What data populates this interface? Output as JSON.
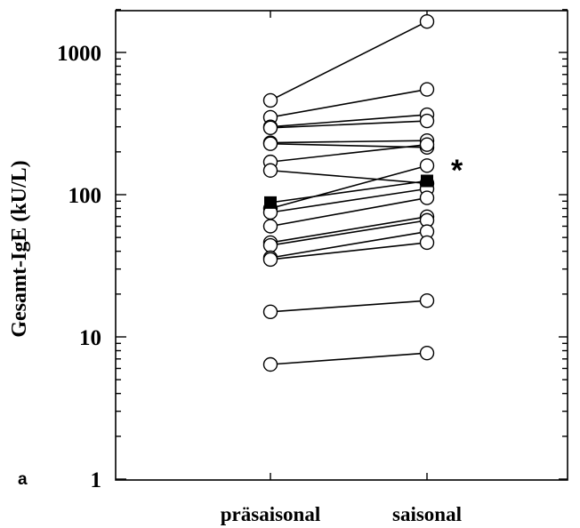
{
  "chart_data": {
    "type": "scatter",
    "subtype": "paired-dot-plot",
    "title": "",
    "xlabel": "",
    "ylabel": "Gesamt-IgE (kU/L)",
    "yscale": "log",
    "ylim": [
      1,
      2000
    ],
    "yticks": [
      {
        "value": 1,
        "label": "1"
      },
      {
        "value": 10,
        "label": "10"
      },
      {
        "value": 100,
        "label": "100"
      },
      {
        "value": 1000,
        "label": "1000"
      }
    ],
    "categories": [
      "präsaisonal",
      "saisonal"
    ],
    "pairs": [
      {
        "before": 460,
        "after": 1650
      },
      {
        "before": 350,
        "after": 550
      },
      {
        "before": 300,
        "after": 365
      },
      {
        "before": 295,
        "after": 330
      },
      {
        "before": 232,
        "after": 240
      },
      {
        "before": 228,
        "after": 215
      },
      {
        "before": 170,
        "after": 225
      },
      {
        "before": 148,
        "after": 120
      },
      {
        "before": 80,
        "after": 160
      },
      {
        "before": 75,
        "after": 110
      },
      {
        "before": 60,
        "after": 95
      },
      {
        "before": 46,
        "after": 70
      },
      {
        "before": 44,
        "after": 66
      },
      {
        "before": 36,
        "after": 55
      },
      {
        "before": 35,
        "after": 46
      },
      {
        "before": 15,
        "after": 18
      },
      {
        "before": 6.4,
        "after": 7.7
      }
    ],
    "mean": {
      "before": 88,
      "after": 125
    },
    "annotations": [
      "*",
      "a"
    ],
    "grid": false,
    "legend": "none"
  }
}
